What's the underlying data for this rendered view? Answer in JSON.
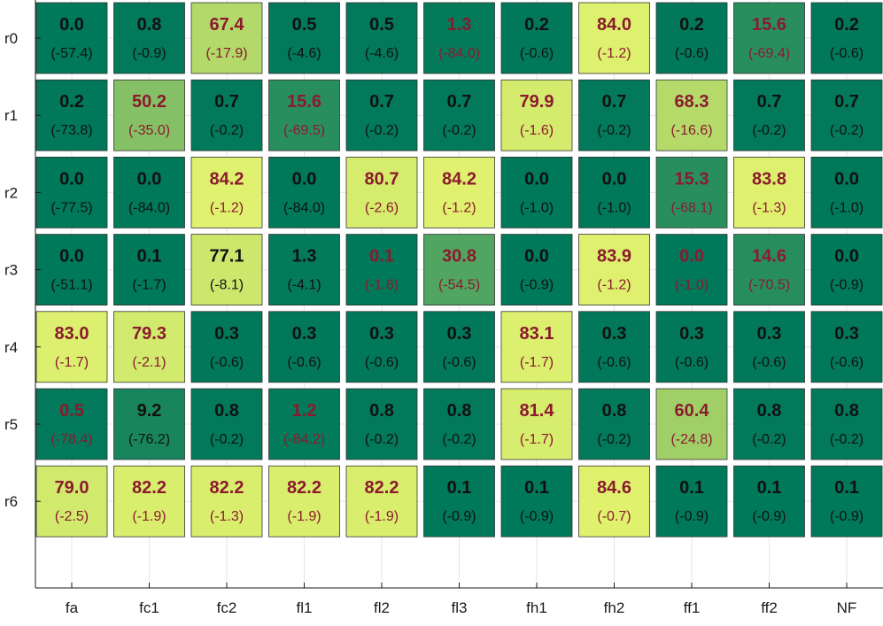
{
  "chart_data": {
    "type": "heatmap",
    "rows": [
      "r0",
      "r1",
      "r2",
      "r3",
      "r4",
      "r5",
      "r6"
    ],
    "columns": [
      "fa",
      "fc1",
      "fc2",
      "fl1",
      "fl2",
      "fl3",
      "fh1",
      "fh2",
      "ff1",
      "ff2",
      "NF"
    ],
    "values": [
      [
        0.0,
        0.8,
        67.4,
        0.5,
        0.5,
        1.3,
        0.2,
        84.0,
        0.2,
        15.6,
        0.2
      ],
      [
        0.2,
        50.2,
        0.7,
        15.6,
        0.7,
        0.7,
        79.9,
        0.7,
        68.3,
        0.7,
        0.7
      ],
      [
        0.0,
        0.0,
        84.2,
        0.0,
        80.7,
        84.2,
        0.0,
        0.0,
        15.3,
        83.8,
        0.0
      ],
      [
        0.0,
        0.1,
        77.1,
        1.3,
        0.1,
        30.8,
        0.0,
        83.9,
        0.0,
        14.6,
        0.0
      ],
      [
        83.0,
        79.3,
        0.3,
        0.3,
        0.3,
        0.3,
        83.1,
        0.3,
        0.3,
        0.3,
        0.3
      ],
      [
        0.5,
        9.2,
        0.8,
        1.2,
        0.8,
        0.8,
        81.4,
        0.8,
        60.4,
        0.8,
        0.8
      ],
      [
        79.0,
        82.2,
        82.2,
        82.2,
        82.2,
        0.1,
        0.1,
        84.6,
        0.1,
        0.1,
        0.1
      ]
    ],
    "top_labels": [
      [
        "0.0",
        "0.8",
        "67.4",
        "0.5",
        "0.5",
        "1.3",
        "0.2",
        "84.0",
        "0.2",
        "15.6",
        "0.2"
      ],
      [
        "0.2",
        "50.2",
        "0.7",
        "15.6",
        "0.7",
        "0.7",
        "79.9",
        "0.7",
        "68.3",
        "0.7",
        "0.7"
      ],
      [
        "0.0",
        "0.0",
        "84.2",
        "0.0",
        "80.7",
        "84.2",
        "0.0",
        "0.0",
        "15.3",
        "83.8",
        "0.0"
      ],
      [
        "0.0",
        "0.1",
        "77.1",
        "1.3",
        "0.1",
        "30.8",
        "0.0",
        "83.9",
        "0.0",
        "14.6",
        "0.0"
      ],
      [
        "83.0",
        "79.3",
        "0.3",
        "0.3",
        "0.3",
        "0.3",
        "83.1",
        "0.3",
        "0.3",
        "0.3",
        "0.3"
      ],
      [
        "0.5",
        "9.2",
        "0.8",
        "1.2",
        "0.8",
        "0.8",
        "81.4",
        "0.8",
        "60.4",
        "0.8",
        "0.8"
      ],
      [
        "79.0",
        "82.2",
        "82.2",
        "82.2",
        "82.2",
        "0.1",
        "0.1",
        "84.6",
        "0.1",
        "0.1",
        "0.1"
      ]
    ],
    "bottom_labels": [
      [
        "(-57.4)",
        "(-0.9)",
        "(-17.9)",
        "(-4.6)",
        "(-4.6)",
        "(-84.0)",
        "(-0.6)",
        "(-1.2)",
        "(-0.6)",
        "(-69.4)",
        "(-0.6)"
      ],
      [
        "(-73.8)",
        "(-35.0)",
        "(-0.2)",
        "(-69.5)",
        "(-0.2)",
        "(-0.2)",
        "(-1.6)",
        "(-0.2)",
        "(-16.6)",
        "(-0.2)",
        "(-0.2)"
      ],
      [
        "(-77.5)",
        "(-84.0)",
        "(-1.2)",
        "(-84.0)",
        "(-2.6)",
        "(-1.2)",
        "(-1.0)",
        "(-1.0)",
        "(-68.1)",
        "(-1.3)",
        "(-1.0)"
      ],
      [
        "(-51.1)",
        "(-1.7)",
        "(-8.1)",
        "(-4.1)",
        "(-1.6)",
        "(-54.5)",
        "(-0.9)",
        "(-1.2)",
        "(-1.0)",
        "(-70.5)",
        "(-0.9)"
      ],
      [
        "(-1.7)",
        "(-2.1)",
        "(-0.6)",
        "(-0.6)",
        "(-0.6)",
        "(-0.6)",
        "(-1.7)",
        "(-0.6)",
        "(-0.6)",
        "(-0.6)",
        "(-0.6)"
      ],
      [
        "(-78.4)",
        "(-76.2)",
        "(-0.2)",
        "(-84.2)",
        "(-0.2)",
        "(-0.2)",
        "(-1.7)",
        "(-0.2)",
        "(-24.8)",
        "(-0.2)",
        "(-0.2)"
      ],
      [
        "(-2.5)",
        "(-1.9)",
        "(-1.3)",
        "(-1.9)",
        "(-1.9)",
        "(-0.9)",
        "(-0.9)",
        "(-0.7)",
        "(-0.9)",
        "(-0.9)",
        "(-0.9)"
      ]
    ],
    "highlight_red": [
      [
        false,
        false,
        true,
        false,
        false,
        true,
        false,
        true,
        false,
        true,
        false
      ],
      [
        false,
        true,
        false,
        true,
        false,
        false,
        true,
        false,
        true,
        false,
        false
      ],
      [
        false,
        false,
        true,
        false,
        true,
        true,
        false,
        false,
        true,
        true,
        false
      ],
      [
        false,
        false,
        false,
        false,
        true,
        true,
        false,
        true,
        true,
        true,
        false
      ],
      [
        true,
        true,
        false,
        false,
        false,
        false,
        true,
        false,
        false,
        false,
        false
      ],
      [
        true,
        false,
        false,
        true,
        false,
        false,
        true,
        false,
        true,
        false,
        false
      ],
      [
        true,
        true,
        true,
        true,
        true,
        false,
        false,
        true,
        false,
        false,
        false
      ]
    ],
    "value_range": [
      0,
      85
    ],
    "colors": {
      "low": "#00785a",
      "high": "#e1f26e",
      "text_dark": "#111111",
      "text_red": "#8b1a2e",
      "cell_border": "#333333",
      "grid": "#e6e6e6",
      "axis": "#1a1a1a"
    },
    "grid": true
  }
}
